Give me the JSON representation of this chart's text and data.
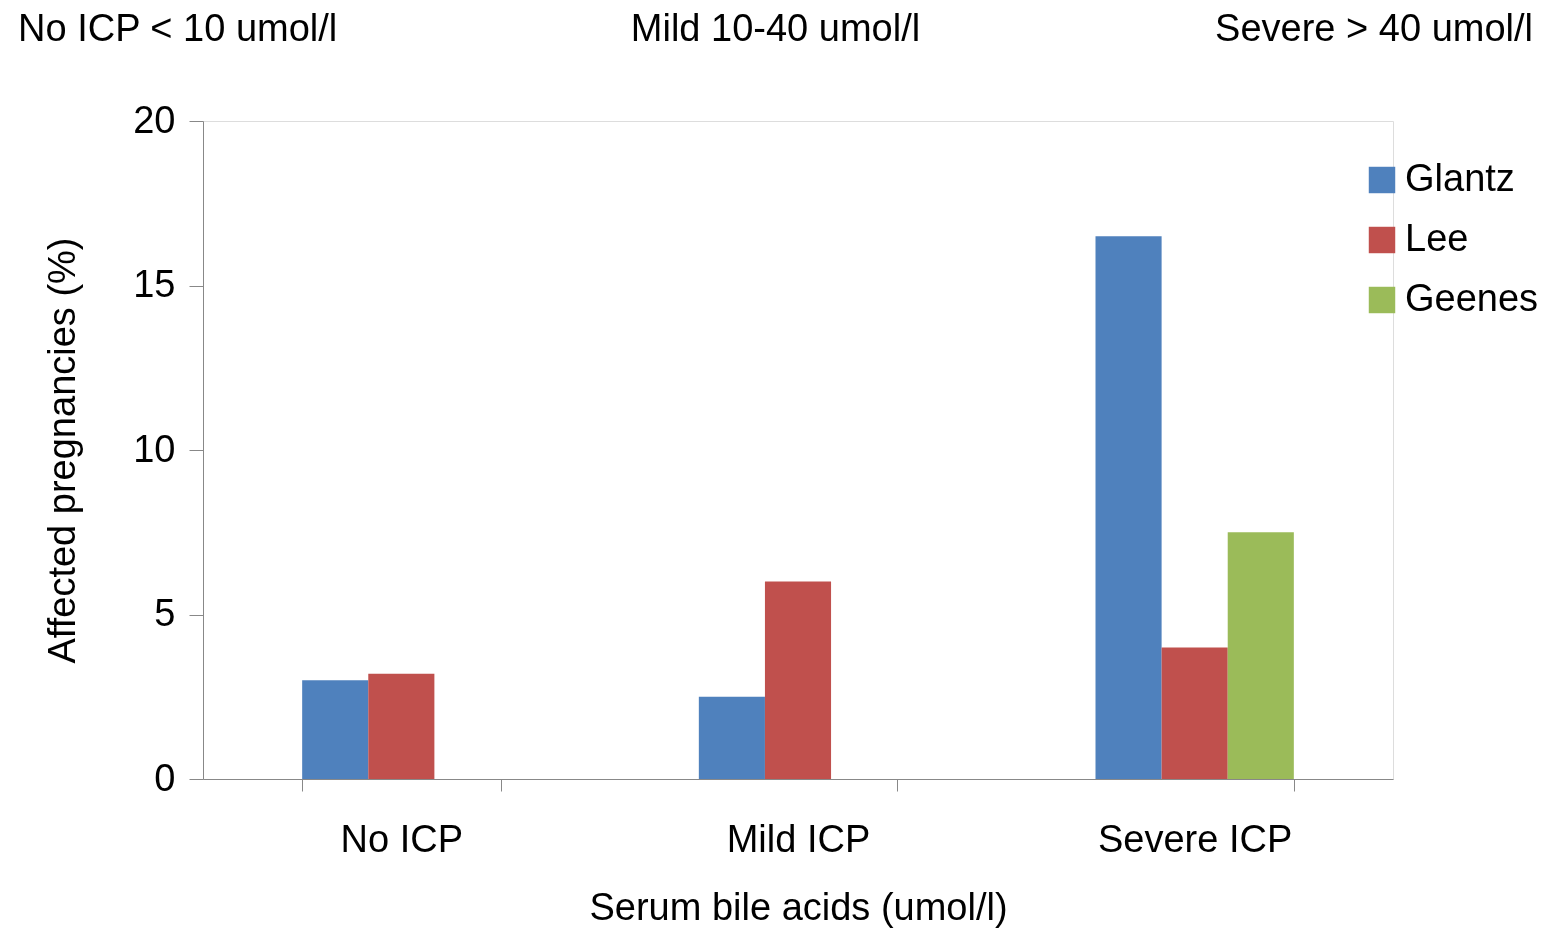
{
  "chart_data": {
    "type": "bar",
    "categories": [
      "No ICP",
      "Mild ICP",
      "Severe ICP"
    ],
    "series": [
      {
        "name": "Glantz",
        "color": "#4f81bd",
        "values": [
          3.0,
          2.5,
          16.5
        ]
      },
      {
        "name": "Lee",
        "color": "#c0504d",
        "values": [
          3.2,
          6.0,
          4.0
        ]
      },
      {
        "name": "Geenes",
        "color": "#9bbb59",
        "values": [
          null,
          null,
          7.5
        ]
      }
    ],
    "xlabel": "Serum bile acids (umol/l)",
    "ylabel": "Affected pregnancies (%)",
    "ylim": [
      0,
      20
    ],
    "yticks": [
      0,
      5,
      10,
      15,
      20
    ],
    "annotations": [
      "No ICP < 10 umol/l",
      "Mild 10-40 umol/l",
      "Severe > 40 umol/l"
    ],
    "grid": false,
    "legend": "top right"
  }
}
